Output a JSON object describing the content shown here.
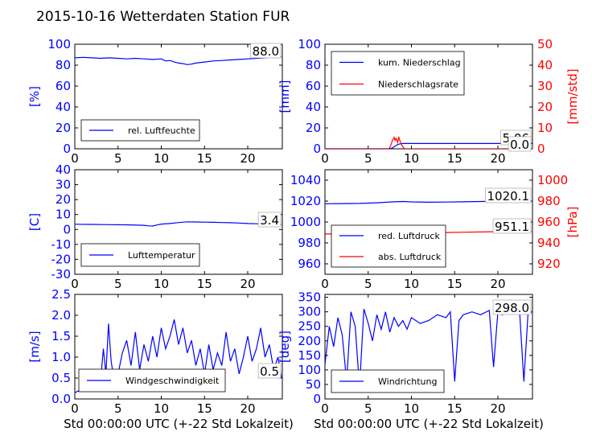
{
  "title": "2015-10-16 Wetterdaten Station FUR\u0001",
  "colors": {
    "primary": "#0000ff",
    "secondary": "#ff0000",
    "text": "#000000"
  },
  "chart_data": [
    {
      "id": "humidity",
      "type": "line",
      "ylabel": "[%]",
      "xlim": [
        0,
        24
      ],
      "ylim": [
        0,
        100
      ],
      "xticks": [
        0,
        5,
        10,
        15,
        20
      ],
      "yticks": [
        0,
        20,
        40,
        60,
        80,
        100
      ],
      "legend_position": "lower-left",
      "series": [
        {
          "name": "rel. Luftfeuchte",
          "color": "#0000ff",
          "x": [
            0,
            1,
            2,
            3,
            4,
            5,
            6,
            7,
            8,
            9,
            10,
            10.5,
            11,
            11.5,
            12,
            12.5,
            13,
            13.5,
            14,
            15,
            16,
            17,
            18,
            19,
            20,
            21,
            22,
            23,
            23.9
          ],
          "y": [
            87,
            87.5,
            87,
            86.5,
            87,
            86.5,
            86,
            86.5,
            86,
            85.5,
            86,
            84,
            84.5,
            83,
            82,
            81.5,
            80.5,
            81,
            82,
            83,
            84,
            84.5,
            85,
            85.5,
            86,
            86.5,
            87,
            88,
            88
          ]
        }
      ],
      "annotations": [
        "88.0"
      ]
    },
    {
      "id": "precipitation",
      "type": "line",
      "ylabel": "[mm]",
      "ylabel_right": "[mm/std]",
      "xlim": [
        0,
        24
      ],
      "ylim": [
        0,
        100
      ],
      "ylim_right": [
        0,
        50
      ],
      "xticks": [
        0,
        5,
        10,
        15,
        20
      ],
      "yticks": [
        0,
        20,
        40,
        60,
        80,
        100
      ],
      "yticks_right": [
        0,
        10,
        20,
        30,
        40,
        50
      ],
      "legend_position": "upper-left",
      "series": [
        {
          "name": "kum. Niederschlag",
          "color": "#0000ff",
          "axis": "left",
          "x": [
            0,
            7.5,
            7.8,
            8.1,
            8.4,
            8.7,
            9,
            24
          ],
          "y": [
            0,
            0,
            0.8,
            2.5,
            4,
            4.8,
            5.06,
            5.06
          ]
        },
        {
          "name": "Niederschlagsrate",
          "color": "#ff0000",
          "axis": "right",
          "x": [
            0,
            7.4,
            7.6,
            7.8,
            8.0,
            8.1,
            8.25,
            8.4,
            8.55,
            8.7,
            8.85,
            9.0,
            9.2,
            24
          ],
          "y": [
            0,
            0,
            1.5,
            4,
            5.5,
            4,
            5,
            3,
            5.5,
            3.5,
            2,
            1,
            0,
            0
          ]
        }
      ],
      "annotations": [
        "5.06",
        "0.0"
      ]
    },
    {
      "id": "temperature",
      "type": "line",
      "ylabel": "[C]",
      "xlim": [
        0,
        24
      ],
      "ylim": [
        -30,
        40
      ],
      "xticks": [
        0,
        5,
        10,
        15,
        20
      ],
      "yticks": [
        -30,
        -20,
        -10,
        0,
        10,
        20,
        30,
        40
      ],
      "legend_position": "lower-left",
      "series": [
        {
          "name": "Lufttemperatur",
          "color": "#0000ff",
          "x": [
            0,
            2,
            4,
            6,
            8,
            8.5,
            9,
            9.5,
            10,
            11,
            12,
            13,
            14,
            15,
            16,
            17,
            18,
            19,
            20,
            21,
            22,
            23,
            23.9
          ],
          "y": [
            3.5,
            3.4,
            3.2,
            3.1,
            2.8,
            2.4,
            2.3,
            3.0,
            3.6,
            4.0,
            4.6,
            5.1,
            5.0,
            4.9,
            4.8,
            4.6,
            4.5,
            4.3,
            4.0,
            3.8,
            3.6,
            3.4,
            3.4
          ]
        }
      ],
      "annotations": [
        "3.4"
      ]
    },
    {
      "id": "pressure",
      "type": "line",
      "ylabel_right": "[hPa]",
      "xlim": [
        0,
        24
      ],
      "ylim": [
        950,
        1050
      ],
      "ylim_right": [
        910,
        1010
      ],
      "xticks": [
        0,
        5,
        10,
        15,
        20
      ],
      "yticks": [
        960,
        980,
        1000,
        1020,
        1040
      ],
      "yticks_right": [
        920,
        940,
        960,
        980,
        1000
      ],
      "legend_position": "lower-left",
      "series": [
        {
          "name": "red. Luftdruck",
          "color": "#0000ff",
          "axis": "left",
          "x": [
            0,
            2,
            4,
            6,
            8,
            9,
            10,
            12,
            14,
            16,
            18,
            20,
            22,
            23.9
          ],
          "y": [
            1017.5,
            1017.6,
            1017.8,
            1018.4,
            1019.3,
            1019.6,
            1019.2,
            1018.9,
            1019.1,
            1019.3,
            1019.6,
            1019.9,
            1020.1,
            1020.1
          ]
        },
        {
          "name": "abs. Luftdruck",
          "color": "#ff0000",
          "axis": "right",
          "x": [
            0,
            2,
            4,
            6,
            8,
            9,
            10,
            12,
            14,
            16,
            18,
            20,
            22,
            23.9
          ],
          "y": [
            948.5,
            948.6,
            948.8,
            949.3,
            950.0,
            950.3,
            949.9,
            949.7,
            949.9,
            950.2,
            950.5,
            950.8,
            951.1,
            951.1
          ]
        }
      ],
      "annotations": [
        "1020.1",
        "951.1"
      ]
    },
    {
      "id": "wind-speed",
      "type": "line",
      "ylabel": "[m/s]",
      "xlabel": "Std 00:00:00 UTC (+-22 Std Lokalzeit)",
      "xlim": [
        0,
        24
      ],
      "ylim": [
        0,
        2.5
      ],
      "xticks": [
        0,
        5,
        10,
        15,
        20
      ],
      "yticks": [
        0.0,
        0.5,
        1.0,
        1.5,
        2.0,
        2.5
      ],
      "legend_position": "lower-center",
      "series": [
        {
          "name": "Windgeschwindigkeit",
          "color": "#0000ff",
          "x": [
            0,
            0.5,
            1,
            1.5,
            2,
            2.5,
            3,
            3.3,
            3.6,
            3.9,
            4.2,
            4.5,
            5,
            5.5,
            6,
            6.5,
            7,
            7.5,
            8,
            8.5,
            9,
            9.5,
            10,
            10.5,
            11,
            11.5,
            12,
            12.5,
            13,
            13.5,
            14,
            14.5,
            15,
            15.5,
            16,
            16.5,
            17,
            17.5,
            18,
            18.5,
            19,
            19.5,
            20,
            20.5,
            21,
            21.5,
            22,
            22.5,
            23,
            23.5,
            23.9
          ],
          "y": [
            0.15,
            0.2,
            0.25,
            0.3,
            0.35,
            0.4,
            0.5,
            1.2,
            0.6,
            1.8,
            0.9,
            0.5,
            0.6,
            1.1,
            1.4,
            0.8,
            1.6,
            0.7,
            1.3,
            0.9,
            1.5,
            1.0,
            1.7,
            1.2,
            1.5,
            1.9,
            1.3,
            1.7,
            1.1,
            1.4,
            0.8,
            1.2,
            0.6,
            1.3,
            0.7,
            1.1,
            0.8,
            1.6,
            0.9,
            1.2,
            0.6,
            1.0,
            1.5,
            0.9,
            1.2,
            1.7,
            1.0,
            1.3,
            0.7,
            1.0,
            0.5
          ]
        }
      ],
      "annotations": [
        "0.5"
      ]
    },
    {
      "id": "wind-direction",
      "type": "line",
      "ylabel": "[deg]",
      "xlabel": "Std 00:00:00 UTC (+-22 Std Lokalzeit)",
      "xlim": [
        0,
        24
      ],
      "ylim": [
        0,
        360
      ],
      "xticks": [
        0,
        5,
        10,
        15,
        20
      ],
      "yticks": [
        0,
        50,
        100,
        150,
        200,
        250,
        300,
        350
      ],
      "legend_position": "lower-left",
      "series": [
        {
          "name": "Windrichtung",
          "color": "#0000ff",
          "x": [
            0,
            0.5,
            1,
            1.5,
            2,
            2.5,
            3,
            3.5,
            4,
            4.5,
            5,
            5.5,
            6,
            6.5,
            7,
            7.5,
            8,
            8.5,
            9,
            9.5,
            10,
            11,
            12,
            13,
            14,
            14.5,
            15,
            15.5,
            16,
            17,
            18,
            19,
            19.5,
            20,
            20.5,
            21,
            22,
            22.5,
            23,
            23.5,
            23.9
          ],
          "y": [
            120,
            250,
            180,
            280,
            220,
            60,
            300,
            250,
            40,
            310,
            260,
            200,
            290,
            240,
            300,
            230,
            280,
            250,
            270,
            240,
            280,
            260,
            270,
            290,
            280,
            300,
            60,
            270,
            290,
            300,
            290,
            305,
            110,
            300,
            290,
            300,
            295,
            305,
            60,
            300,
            298
          ]
        }
      ],
      "annotations": [
        "298.0"
      ]
    }
  ]
}
